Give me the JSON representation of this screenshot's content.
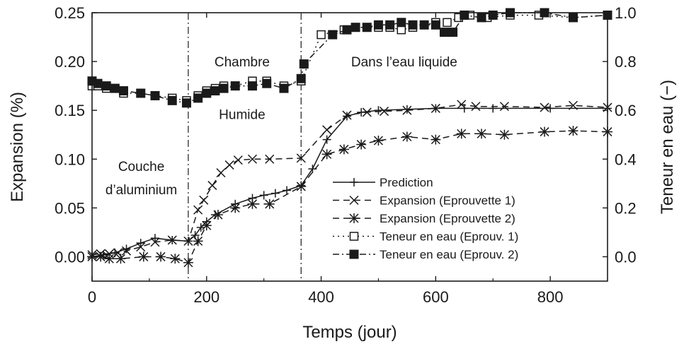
{
  "chart_data": {
    "type": "line",
    "xlabel": "Temps (jour)",
    "ylabel_left": "Expansion (%)",
    "ylabel_right": "Teneur en eau (−)",
    "xlim": [
      0,
      900
    ],
    "ylim_left": [
      -0.025,
      0.25
    ],
    "ylim_right": [
      -0.1,
      1.0
    ],
    "x_ticks": [
      "0",
      "200",
      "400",
      "600",
      "800"
    ],
    "x_tick_values": [
      0,
      200,
      400,
      600,
      800
    ],
    "y_left_ticks": [
      "0.00",
      "0.05",
      "0.10",
      "0.15",
      "0.20",
      "0.25"
    ],
    "y_left_tick_values": [
      0,
      0.05,
      0.1,
      0.15,
      0.2,
      0.25
    ],
    "y_right_ticks": [
      "0.0",
      "0.2",
      "0.4",
      "0.6",
      "0.8",
      "1.0"
    ],
    "y_right_tick_values": [
      0,
      0.2,
      0.4,
      0.6,
      0.8,
      1.0
    ],
    "grid": false,
    "legend_position": "lower-right",
    "vertical_lines": [
      168,
      365
    ],
    "annotations": [
      {
        "text": "Chambre",
        "x": 262,
        "y": 0.2
      },
      {
        "text": "Humide",
        "x": 262,
        "y": 0.146
      },
      {
        "text": "Dans l’eau liquide",
        "x": 545,
        "y": 0.2
      },
      {
        "text": "Couche",
        "x": 86,
        "y": 0.093
      },
      {
        "text": "d’aluminium",
        "x": 86,
        "y": 0.069
      }
    ],
    "series": [
      {
        "name": "Prediction",
        "axis": "left",
        "marker": "plus",
        "dash": "solid",
        "x": [
          0,
          20,
          40,
          60,
          85,
          110,
          140,
          168,
          180,
          190,
          200,
          215,
          250,
          280,
          300,
          320,
          340,
          365,
          385,
          410,
          445,
          470,
          500,
          550,
          600,
          650,
          700,
          800,
          900
        ],
        "y": [
          0.0,
          0.002,
          0.004,
          0.008,
          0.014,
          0.019,
          0.017,
          0.016,
          0.022,
          0.03,
          0.036,
          0.043,
          0.054,
          0.06,
          0.063,
          0.065,
          0.068,
          0.073,
          0.09,
          0.12,
          0.144,
          0.148,
          0.15,
          0.151,
          0.152,
          0.152,
          0.152,
          0.152,
          0.152
        ]
      },
      {
        "name": "Expansion (Eprouvette 1)",
        "axis": "left",
        "marker": "x",
        "dash": "dash",
        "x": [
          0,
          15,
          30,
          45,
          60,
          85,
          110,
          140,
          168,
          185,
          195,
          210,
          225,
          240,
          255,
          280,
          310,
          365,
          410,
          445,
          480,
          510,
          550,
          600,
          645,
          670,
          720,
          790,
          840,
          900
        ],
        "y": [
          0.002,
          0.003,
          0.003,
          0.004,
          0.006,
          0.01,
          0.015,
          0.017,
          0.016,
          0.048,
          0.058,
          0.073,
          0.086,
          0.094,
          0.099,
          0.1,
          0.1,
          0.101,
          0.13,
          0.145,
          0.148,
          0.149,
          0.15,
          0.152,
          0.156,
          0.154,
          0.154,
          0.153,
          0.155,
          0.153
        ]
      },
      {
        "name": "Expansion (Eprouvette 2)",
        "axis": "left",
        "marker": "asterisk",
        "dash": "dash",
        "x": [
          0,
          15,
          30,
          50,
          90,
          120,
          145,
          168,
          185,
          200,
          220,
          250,
          280,
          310,
          365,
          410,
          440,
          470,
          500,
          550,
          600,
          645,
          680,
          720,
          790,
          840,
          900
        ],
        "y": [
          0.0,
          0.0,
          -0.002,
          -0.002,
          0.0,
          0.0,
          -0.002,
          -0.006,
          0.016,
          0.032,
          0.043,
          0.05,
          0.054,
          0.054,
          0.072,
          0.105,
          0.11,
          0.115,
          0.119,
          0.123,
          0.12,
          0.126,
          0.126,
          0.125,
          0.128,
          0.129,
          0.128
        ]
      },
      {
        "name": "Teneur en eau (Eprouv. 1)",
        "axis": "right",
        "marker": "square-open",
        "dash": "dot",
        "x": [
          0,
          10,
          25,
          40,
          55,
          85,
          110,
          140,
          165,
          185,
          200,
          215,
          230,
          250,
          280,
          305,
          335,
          365,
          400,
          440,
          460,
          480,
          500,
          520,
          540,
          560,
          580,
          600,
          620,
          640,
          660,
          690,
          730,
          780,
          840,
          900
        ],
        "y": [
          0.7,
          0.7,
          0.69,
          0.69,
          0.67,
          0.67,
          0.66,
          0.65,
          0.64,
          0.66,
          0.68,
          0.69,
          0.7,
          0.7,
          0.72,
          0.72,
          0.7,
          0.72,
          0.91,
          0.93,
          0.94,
          0.94,
          0.94,
          0.94,
          0.93,
          0.94,
          0.95,
          0.96,
          0.96,
          0.98,
          0.99,
          0.98,
          0.99,
          0.99,
          0.98,
          0.99
        ]
      },
      {
        "name": "Teneur en eau (Eprouv. 2)",
        "axis": "right",
        "marker": "square-filled",
        "dash": "dashdot",
        "x": [
          0,
          10,
          25,
          40,
          55,
          85,
          110,
          140,
          165,
          185,
          200,
          215,
          230,
          250,
          280,
          305,
          335,
          365,
          370,
          420,
          445,
          460,
          480,
          500,
          520,
          540,
          560,
          580,
          600,
          615,
          630,
          650,
          680,
          700,
          730,
          790,
          840,
          900
        ],
        "y": [
          0.72,
          0.71,
          0.7,
          0.69,
          0.68,
          0.67,
          0.66,
          0.64,
          0.63,
          0.65,
          0.67,
          0.68,
          0.69,
          0.7,
          0.7,
          0.71,
          0.69,
          0.73,
          0.79,
          0.91,
          0.93,
          0.94,
          0.94,
          0.95,
          0.95,
          0.96,
          0.95,
          0.95,
          0.95,
          0.92,
          0.92,
          0.99,
          0.98,
          0.99,
          1.0,
          1.0,
          0.98,
          0.99
        ]
      }
    ]
  }
}
